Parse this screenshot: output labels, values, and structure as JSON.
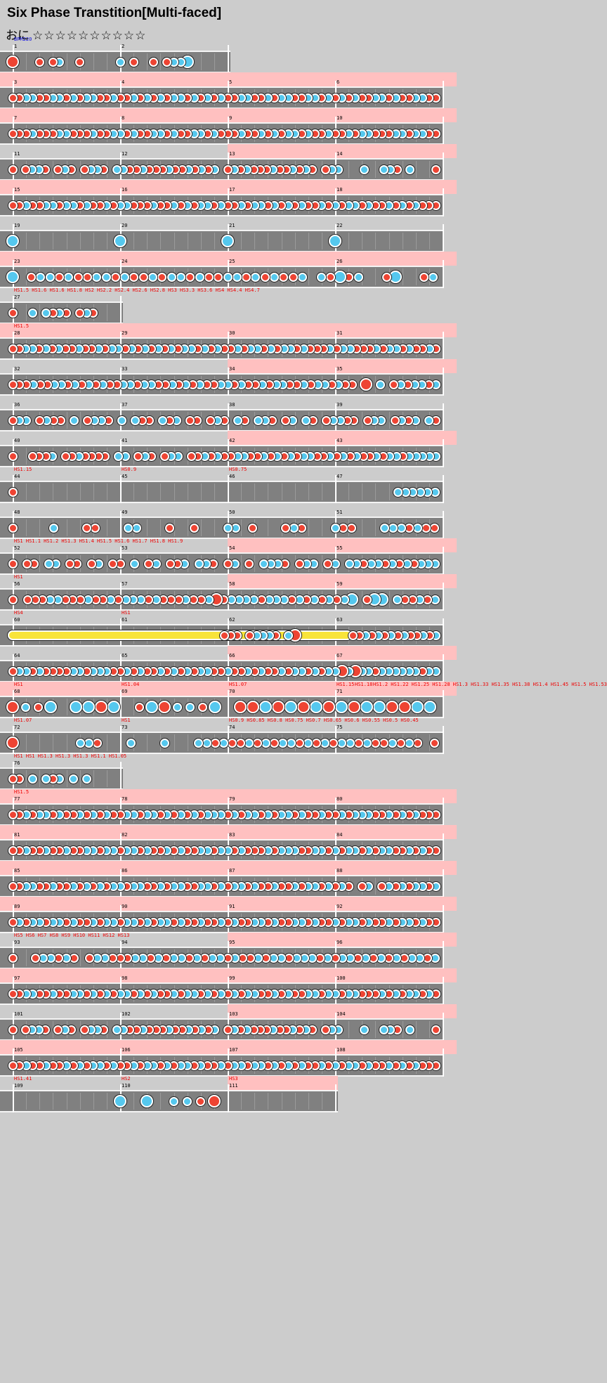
{
  "header": {
    "title": "Six Phase Transtition[Multi-faced]",
    "difficulty": "おに",
    "level_stars": 10,
    "star_glyph": "☆"
  },
  "chart_data": {
    "type": "taiko-note-chart",
    "bpm_label": "BPM220",
    "note_types": {
      "d": "don (red)",
      "k": "ka (blue)",
      "D": "big don",
      "K": "big ka",
      "R": "drumroll",
      "_": "rest"
    },
    "colors": {
      "don": "#ee4433",
      "ka": "#55c8ee",
      "lane": "#808080",
      "gogo": "#ffc0c0",
      "roll": "#f8e43a",
      "background": "#cccccc"
    },
    "rows": [
      {
        "measures": [
          "1",
          "2"
        ],
        "gogo": false,
        "cmds": [
          {
            "text": "BPM220",
            "blue": true
          }
        ],
        "notes": "D___d_dk__d_____k_d__d_dkkK_____"
      },
      {
        "measures": [
          "3",
          "4",
          "5",
          "6"
        ],
        "gogo": true,
        "notes": "ddkkddkkdkdkkddkddkdkdkdkkdkdkdkddkkddkdkkddkkdkdkdkddkkdkddkkdd"
      },
      {
        "measures": [
          "7",
          "8",
          "9",
          "10"
        ],
        "gogo": true,
        "notes": "dddkdddkkdddkddkkdkddkkdkddkkdkdddkddkdkdkkdkddkddkdkkdddkkdkkdd"
      },
      {
        "measures": [
          "11",
          "12",
          "13",
          "14"
        ],
        "gogo": "partial",
        "notes": "d_dkkd_dkd_dkkd_kkddkdddkddkdkdk_dkdkdddkddkdkd_dkk___k__kkd_k___d"
      },
      {
        "measures": [
          "15",
          "16",
          "17",
          "18"
        ],
        "gogo": true,
        "notes": "ddkddkkdkkdkddkdkkdddkddkdkdkkdkddkdkkdkdkdkddkdkdkkdkddkdkdkddd"
      },
      {
        "measures": [
          "19",
          "20",
          "21",
          "22"
        ],
        "gogo": false,
        "notes": "K_______K_______K_______K_______"
      },
      {
        "measures": [
          "23",
          "24",
          "25",
          "26"
        ],
        "gogo": true,
        "notes": "K_dkkdkddkkdkddkdkkdkddkkdkdkddk_kdKdk__dK__dk"
      },
      {
        "measures": [
          "27"
        ],
        "gogo": false,
        "cmds": [
          {
            "text": "HS1.5 HS1.6 HS1.6 HS1.8 HS2 HS2.2 HS2.4 HS2.6 HS2.8 HS3 HS3.3 HS3.6 HS4 HS4.4 HS4.7"
          }
        ],
        "notes": "d__k_kdkd_dkd___"
      },
      {
        "measures": [
          "28",
          "29",
          "30",
          "31"
        ],
        "gogo": true,
        "cmds": [
          {
            "text": "HS1.5"
          }
        ],
        "notes": "ddkkdkdkddkddkdkkdkdkdkdkdkkdkdkddkdkkdkdkkdkdddkdkkdddkdkkdkddkd"
      },
      {
        "measures": [
          "32",
          "33",
          "34",
          "35"
        ],
        "gogo": "partial",
        "notes": "dddkddkkdkdkdkddkkdkkddkdkdkddkkdkddkdkkddkdkkdkdd_D_k_dkdkkdk"
      },
      {
        "measures": [
          "36",
          "37",
          "38",
          "39"
        ],
        "gogo": false,
        "notes": "dkk_dkdd_k_dkkd_k_kdd_kdk_dd_dkd_kd_kkd_dk_kd_dkkdd_dkk_dkdk_kd"
      },
      {
        "measures": [
          "40",
          "41",
          "42",
          "43"
        ],
        "gogo": "partial",
        "notes": "d__dddk_ddkdddd_kk_dkd_dkk_ddkdkddkkddkdkdkdkkddkdkdkddkdkkdkkkkk"
      },
      {
        "measures": [
          "44",
          "45",
          "46",
          "47"
        ],
        "gogo": false,
        "cmds": [
          {
            "text": "HS1.15"
          },
          {
            "text": "HS0.9"
          },
          {
            "text": "HS0.75"
          }
        ],
        "notes": "d___________________________________________________kkkkkk"
      },
      {
        "measures": [
          "48",
          "49",
          "50",
          "51"
        ],
        "gogo": false,
        "notes": "d____k___dd___kk___d__d___kk_d___dkd___kdd___kkkdkdd"
      },
      {
        "measures": [
          "52",
          "53",
          "54",
          "55"
        ],
        "gogo": "partial",
        "cmds": [
          {
            "text": "HS1 HS1.1 HS1.2 HS1.3 HS1.4 HS1.5 HS1.6 HS1.7 HS1.8 HS1.9"
          }
        ],
        "notes": "d_dd_kk_dd_dk_dd_k_dk_ddk_kkd_dk_d_kkkd_dkk_dk_kkdkkdkdkdkkk"
      },
      {
        "measures": [
          "56",
          "57",
          "58",
          "59"
        ],
        "gogo": "partial",
        "cmds": [
          {
            "text": "HS1"
          }
        ],
        "notes": "d_dddkkdddkddkdkkkdkdddkddkDdkkkkdkkkdkdkdkdkK_dKK_kddkdk"
      },
      {
        "measures": [
          "60",
          "61",
          "62",
          "63"
        ],
        "gogo": false,
        "cmds": [
          {
            "text": "HS4"
          },
          {
            "text": "HS1"
          }
        ],
        "roll": {
          "from": 0,
          "to": 0.8
        },
        "notes": "_________________________________ddd_dkkkd_kD________ddkdkdkdkddkdk"
      },
      {
        "measures": [
          "64",
          "65",
          "66",
          "67"
        ],
        "gogo": "partial",
        "notes": "dkkdkddddkkdkkkddkdkddkdkdkdkkddkddkdkddkdkkdkdkkDkDkkdkkkkkkdkk"
      },
      {
        "measures": [
          "68",
          "69",
          "70",
          "71"
        ],
        "gogo": true,
        "cmds": [
          {
            "text": "HS1"
          },
          {
            "text": "HS1.04"
          },
          {
            "text": "HS1.07"
          },
          {
            "text": "HS1.15"
          },
          {
            "text": "HS1.18"
          },
          {
            "text": "HS1.2 HS1.22 HS1.25 HS1.28 HS1.3 HS1.33 HS1.35 HS1.38 HS1.4 HS1.45 HS1.5 HS1.53"
          }
        ],
        "notes": "DkdK_KKDK_dKDkkdK_DDKDKDKDKDKKDDKK"
      },
      {
        "measures": [
          "72",
          "73",
          "74",
          "75"
        ],
        "gogo": false,
        "cmds": [
          {
            "text": "HS1.07"
          },
          {
            "text": "HS1"
          },
          {
            "text": "HS0.9 HS0.85 HS0.8 HS0.75 HS0.7 HS0.65 HS0.6 HS0.55 HS0.5 HS0.45"
          }
        ],
        "notes": "D_______kkd___k___k___kkdkddkdkdkkdkdkdkkdkddkdkd_d"
      },
      {
        "measures": [
          "76"
        ],
        "gogo": false,
        "cmds": [
          {
            "text": "HS1 HS1 HS1.3 HS1.3 HS1.3 HS1.1 HS1.05"
          }
        ],
        "notes": "dd_k_kdk_k_k____"
      },
      {
        "measures": [
          "77",
          "78",
          "79",
          "80"
        ],
        "gogo": true,
        "cmds": [
          {
            "text": "HS1.5"
          }
        ],
        "notes": "ddkdkkdkddkdkdkddkkdkkdkdkdkdkkkdkdkkdkdkkdkddkddkdkkkddkdkdkddd"
      },
      {
        "measures": [
          "81",
          "82",
          "83",
          "84"
        ],
        "gogo": true,
        "notes": "ddkddkddkddkkdkkdkkdkddkdkddkkdkkdkdddkdkkkddkkdkdkkdkdkkddkdkdd"
      },
      {
        "measures": [
          "85",
          "86",
          "87",
          "88"
        ],
        "gogo": true,
        "notes": "ddkkddkddkdkdkdkkdkkddkdkkddkkdkdkkdkddkddkdkkdkdkd_dk_dkdkdkkdk"
      },
      {
        "measures": [
          "89",
          "90",
          "91",
          "92"
        ],
        "gogo": true,
        "notes": "dkdkkdkkdkddkdkkdkkdkdkkdkddkddkdkddkkdkddkkdkddkdkkdkddkdkkdkdd"
      },
      {
        "measures": [
          "93",
          "94",
          "95",
          "96"
        ],
        "gogo": "partial",
        "cmds": [
          {
            "text": "HS5 HS6 HS7 HS8 HS9 HS10 HS11 HS12 HS13"
          }
        ],
        "notes": "d__dkkdkd_dkkdddkkdkdkkdkdkkdkddkdkkdkkkdkdkkdkdkdkdkkdk"
      },
      {
        "measures": [
          "97",
          "98",
          "99",
          "100"
        ],
        "gogo": true,
        "notes": "ddkkddkddkkdkdkdkkdkdkddkdkkdkdkdkdkkddkdkddkkdkkdkkdddkdkdkkdkd"
      },
      {
        "measures": [
          "101",
          "102",
          "103",
          "104"
        ],
        "gogo": "partial",
        "notes": "d_dkkd_dkd_dkkd_kkddkdddkddkdkdk_dkdkdddkddkdkd_dkk___k__kkd_k___d"
      },
      {
        "measures": [
          "105",
          "106",
          "107",
          "108"
        ],
        "gogo": true,
        "notes": "ddkddkddkdkdkkdkddkdkkdkdkkdkddkdkkdkkdkdkdkddkdkdkkdkddkdkdkddd"
      },
      {
        "measures": [
          "109",
          "110",
          "111"
        ],
        "gogo": "partial",
        "cmds": [
          {
            "text": "HS1.41"
          },
          {
            "text": "HS2"
          },
          {
            "text": "HS3"
          }
        ],
        "notes": "________K_K_kkdD________"
      }
    ]
  }
}
